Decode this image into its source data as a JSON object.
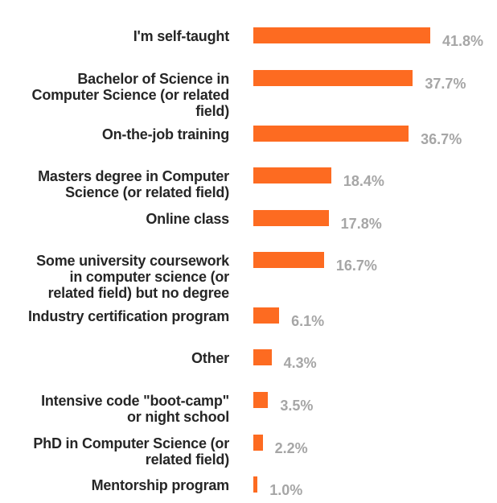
{
  "chart_data": {
    "type": "bar",
    "orientation": "horizontal",
    "categories": [
      "I'm self-taught",
      "Bachelor of Science in\nComputer Science (or related\nfield)",
      "On-the-job training",
      "Masters degree in Computer\nScience (or related field)",
      "Online class",
      "Some university coursework\nin computer science (or\nrelated field) but no degree",
      "Industry certification program",
      "Other",
      "Intensive code \"boot-camp\"\nor night school",
      "PhD in Computer Science (or\nrelated field)",
      "Mentorship program"
    ],
    "values": [
      41.8,
      37.7,
      36.7,
      18.4,
      17.8,
      16.7,
      6.1,
      4.3,
      3.5,
      2.2,
      1.0
    ],
    "value_labels": [
      "41.8%",
      "37.7%",
      "36.7%",
      "18.4%",
      "17.8%",
      "16.7%",
      "6.1%",
      "4.3%",
      "3.5%",
      "2.2%",
      "1.0%"
    ],
    "bar_color": "#fd6b21",
    "value_label_color": "#a6a6a6",
    "category_label_color": "#262626",
    "grid": false,
    "legend": "none"
  }
}
